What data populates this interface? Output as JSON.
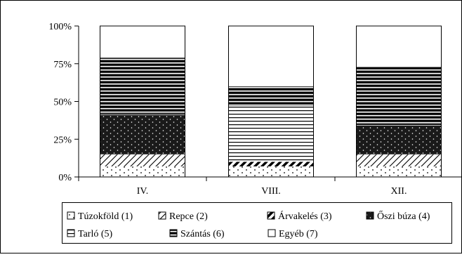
{
  "chart_data": {
    "type": "bar",
    "stacked": true,
    "normalized": true,
    "categories": [
      "IV.",
      "VIII.",
      "XII."
    ],
    "ylim": [
      0,
      100
    ],
    "yticks": [
      "0%",
      "25%",
      "50%",
      "75%",
      "100%"
    ],
    "ytick_values": [
      0,
      25,
      50,
      75,
      100
    ],
    "grid": false,
    "legend_position": "bottom",
    "series": [
      {
        "name": "Túzokföld (1)",
        "pattern": "dots-sparse",
        "values": [
          7,
          7,
          7
        ]
      },
      {
        "name": "Repce (2)",
        "pattern": "diagonal-light",
        "values": [
          8,
          0,
          8
        ]
      },
      {
        "name": "Árvakelés (3)",
        "pattern": "diagonal-bold",
        "values": [
          0,
          3,
          0
        ]
      },
      {
        "name": "Őszi búza (4)",
        "pattern": "dots-dark",
        "values": [
          26,
          0,
          19
        ]
      },
      {
        "name": "Tarló (5)",
        "pattern": "horizontal-thin",
        "values": [
          1,
          37,
          1
        ]
      },
      {
        "name": "Szántás (6)",
        "pattern": "horizontal-thick",
        "values": [
          37,
          13,
          38
        ]
      },
      {
        "name": "Egyéb (7)",
        "pattern": "blank",
        "values": [
          21,
          40,
          27
        ]
      }
    ],
    "colors": {
      "ink": "#000000",
      "dark_fill": "#1a1a1a",
      "background": "#ffffff"
    }
  }
}
